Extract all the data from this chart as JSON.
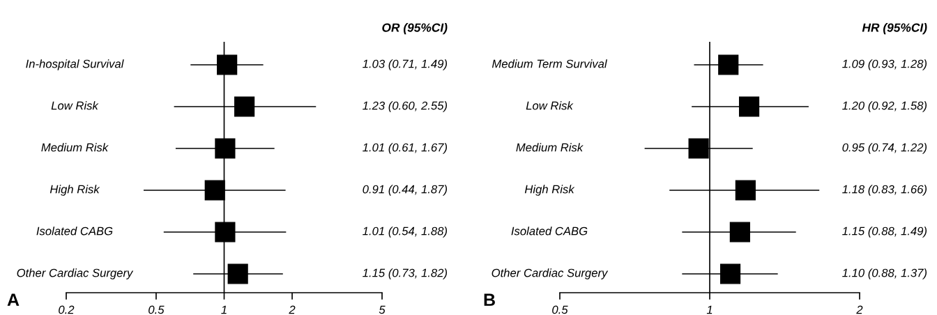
{
  "chart_data": [
    {
      "type": "scatter",
      "orientation": "horizontal",
      "title": "OR (95%CI)",
      "annotations": [
        "A"
      ],
      "log": "x",
      "marker": "square",
      "color": "#000000",
      "grid": false,
      "categories": [
        "In-hospital Survival",
        "Low Risk",
        "Medium Risk",
        "High Risk",
        "Isolated CABG",
        "Other Cardiac Surgery"
      ],
      "values": [
        1.03,
        1.23,
        1.01,
        0.91,
        1.01,
        1.15
      ],
      "errors": [
        [
          0.71,
          1.49
        ],
        [
          0.6,
          2.55
        ],
        [
          0.61,
          1.67
        ],
        [
          0.44,
          1.87
        ],
        [
          0.54,
          1.88
        ],
        [
          0.73,
          1.82
        ]
      ],
      "value_labels": [
        "1.03 (0.71, 1.49)",
        "1.23 (0.60, 2.55)",
        "1.01 (0.61, 1.67)",
        "0.91 (0.44, 1.87)",
        "1.01 (0.54, 1.88)",
        "1.15 (0.73, 1.82)"
      ],
      "xlim": [
        0.2,
        5
      ],
      "xticks": [
        0.2,
        0.5,
        1,
        2,
        5
      ],
      "ref_lines": [
        {
          "axis": "x",
          "value": 1,
          "color": "#000000"
        }
      ]
    },
    {
      "type": "scatter",
      "orientation": "horizontal",
      "title": "HR (95%CI)",
      "annotations": [
        "B"
      ],
      "log": "x",
      "marker": "square",
      "color": "#000000",
      "grid": false,
      "categories": [
        "Medium Term Survival",
        "Low Risk",
        "Medium Risk",
        "High Risk",
        "Isolated CABG",
        "Other Cardiac Surgery"
      ],
      "values": [
        1.09,
        1.2,
        0.95,
        1.18,
        1.15,
        1.1
      ],
      "errors": [
        [
          0.93,
          1.28
        ],
        [
          0.92,
          1.58
        ],
        [
          0.74,
          1.22
        ],
        [
          0.83,
          1.66
        ],
        [
          0.88,
          1.49
        ],
        [
          0.88,
          1.37
        ]
      ],
      "value_labels": [
        "1.09 (0.93, 1.28)",
        "1.20 (0.92, 1.58)",
        "0.95 (0.74, 1.22)",
        "1.18 (0.83, 1.66)",
        "1.15 (0.88, 1.49)",
        "1.10 (0.88, 1.37)"
      ],
      "xlim": [
        0.5,
        2
      ],
      "xticks": [
        0.5,
        1,
        2
      ],
      "ref_lines": [
        {
          "axis": "x",
          "value": 1,
          "color": "#000000"
        }
      ]
    }
  ]
}
